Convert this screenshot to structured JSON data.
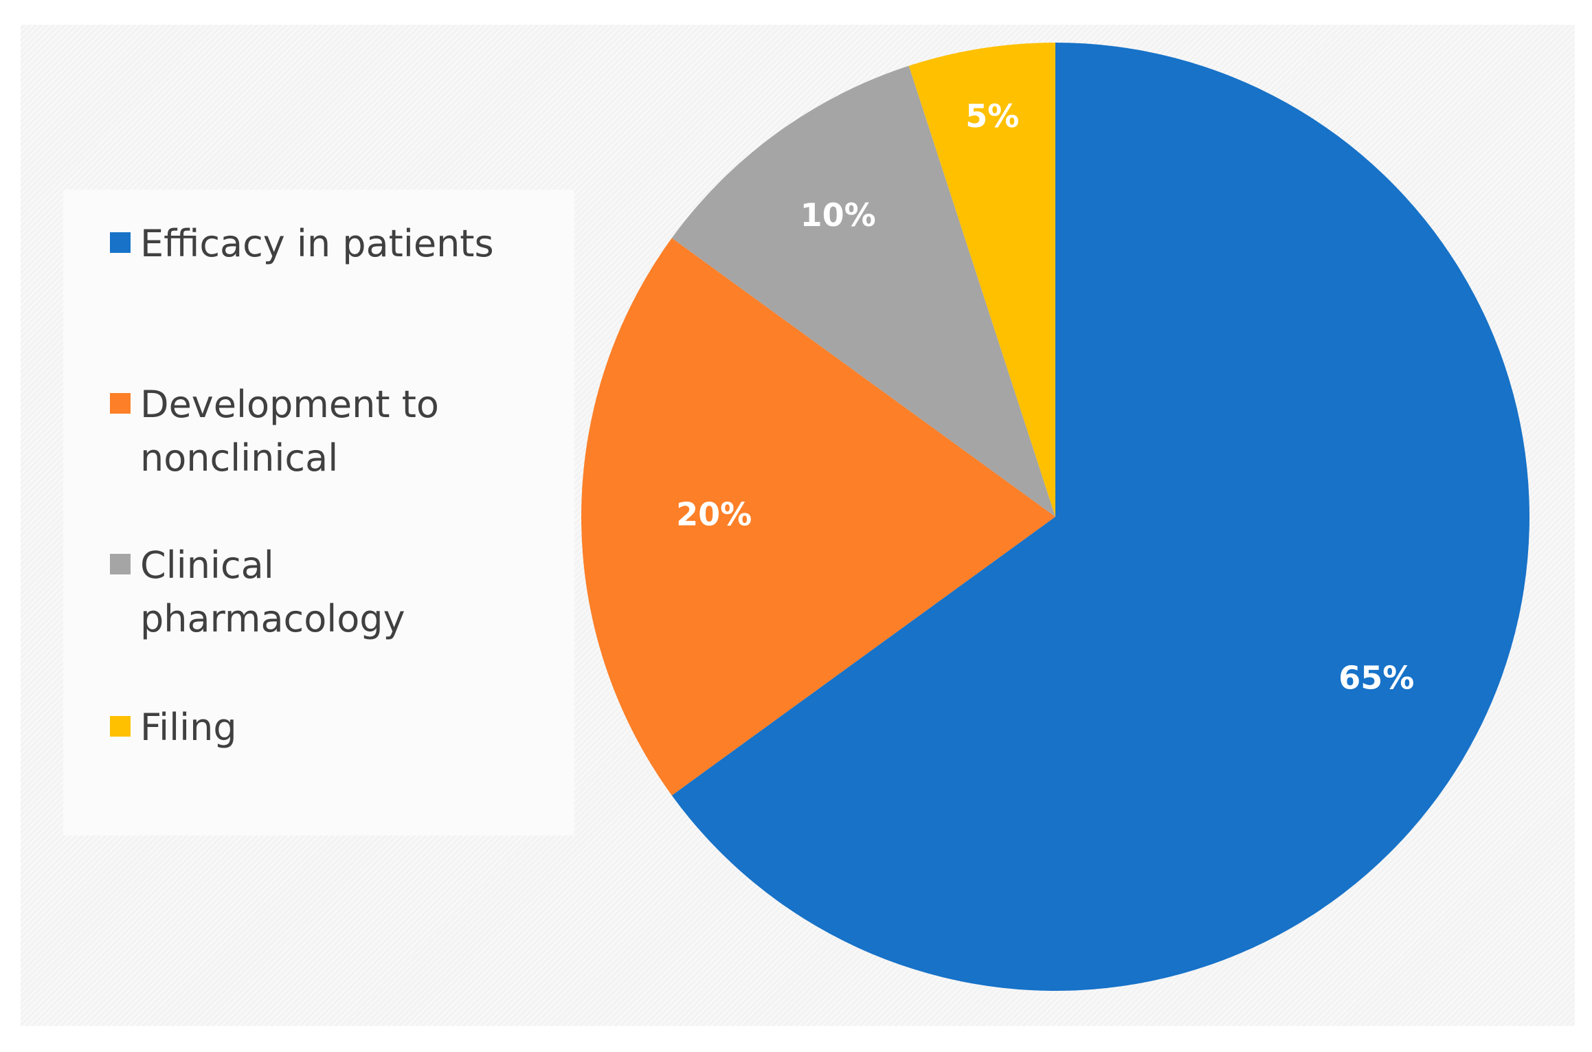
{
  "chart_data": {
    "type": "pie",
    "categories": [
      "Efficacy in patients",
      "Development to nonclinical",
      "Clinical pharmacology",
      "Filing"
    ],
    "values": [
      65,
      20,
      10,
      5
    ],
    "data_labels": [
      "65%",
      "20%",
      "10%",
      "5%"
    ],
    "colors": [
      "#1772c8",
      "#fd7f27",
      "#a5a5a5",
      "#ffc000"
    ],
    "legend": "left",
    "start_angle_deg": 0,
    "direction": "clockwise"
  }
}
